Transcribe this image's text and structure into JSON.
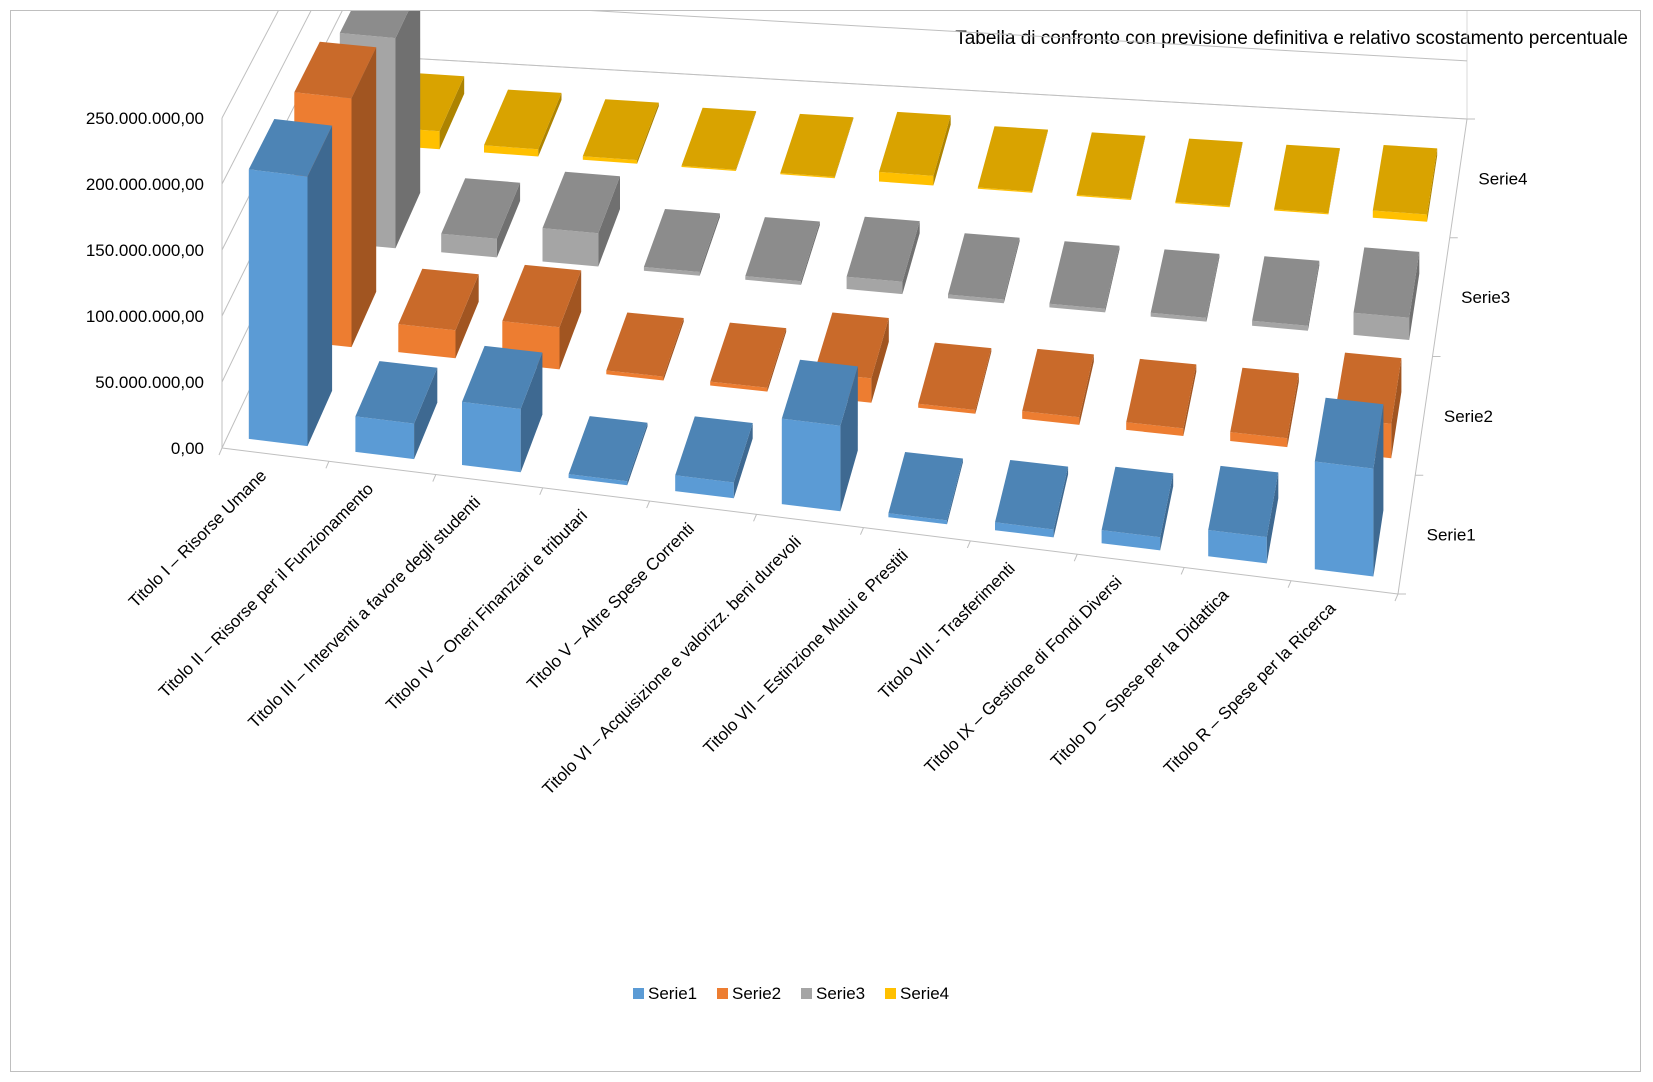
{
  "chart_data": {
    "type": "bar",
    "subtype": "3d-clustered-column",
    "title": "Tabella di confronto con previsione definitiva e relativo scostamento percentuale",
    "xlabel": "",
    "ylabel": "",
    "ylim": [
      0,
      250000000
    ],
    "y_ticks": [
      "0,00",
      "50.000.000,00",
      "100.000.000,00",
      "150.000.000,00",
      "200.000.000,00",
      "250.000.000,00"
    ],
    "categories": [
      "Titolo I – Risorse Umane",
      "Titolo II – Risorse per il Funzionamento",
      "Titolo III – Interventi a favore degli studenti",
      "Titolo IV – Oneri Finanziari e tributari",
      "Titolo V – Altre Spese Correnti",
      "Titolo VI – Acquisizione e valorizz. beni  durevoli",
      "Titolo VII – Estinzione Mutui e Prestiti",
      "Titolo VIII - Trasferimenti",
      "Titolo IX – Gestione di Fondi Diversi",
      "Titolo D – Spese per la Didattica",
      "Titolo R – Spese per la Ricerca"
    ],
    "series": [
      {
        "name": "Serie1",
        "color": "#5b9bd5",
        "values": [
          205000000,
          27000000,
          48000000,
          3000000,
          12000000,
          65000000,
          3000000,
          6000000,
          10000000,
          20000000,
          82000000
        ]
      },
      {
        "name": "Serie2",
        "color": "#ed7d31",
        "values": [
          195000000,
          22000000,
          33000000,
          3000000,
          3000000,
          19000000,
          3000000,
          6000000,
          6000000,
          7000000,
          27000000
        ]
      },
      {
        "name": "Serie3",
        "color": "#a5a5a5",
        "values": [
          170000000,
          15000000,
          27000000,
          3000000,
          3000000,
          10000000,
          3000000,
          3000000,
          3000000,
          4000000,
          18000000
        ]
      },
      {
        "name": "Serie4",
        "color": "#ffc000",
        "values": [
          15000000,
          6000000,
          3000000,
          1000000,
          1000000,
          8000000,
          1000000,
          1000000,
          1000000,
          1000000,
          6000000
        ]
      }
    ],
    "legend": {
      "position": "bottom",
      "items": [
        "Serie1",
        "Serie2",
        "Serie3",
        "Serie4"
      ]
    },
    "depth_axis_labels": [
      "Serie4",
      "Serie3",
      "Serie2",
      "Serie1"
    ],
    "gridlines": true
  }
}
